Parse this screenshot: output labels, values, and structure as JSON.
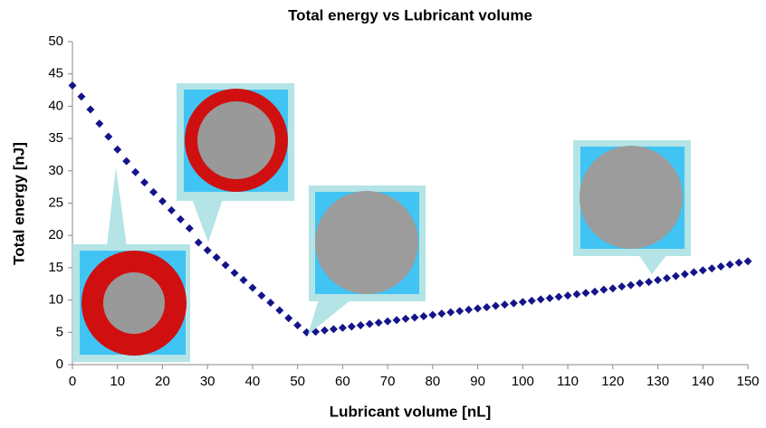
{
  "chart_data": {
    "type": "scatter",
    "title": "Total energy vs Lubricant volume",
    "x_label": "Lubricant volume [nL]",
    "y_label": "Total energy [nJ]",
    "xlim": [
      0,
      150
    ],
    "xticks": [
      0,
      10,
      20,
      30,
      40,
      50,
      60,
      70,
      80,
      90,
      100,
      110,
      120,
      130,
      140,
      150
    ],
    "ylim": [
      0,
      50
    ],
    "yticks": [
      0,
      5,
      10,
      15,
      20,
      25,
      30,
      35,
      40,
      45,
      50
    ],
    "grid": false,
    "series": [
      {
        "color": "#14148a",
        "x": [
          0,
          2,
          4,
          6,
          8,
          10,
          12,
          14,
          16,
          18,
          20,
          22,
          24,
          26,
          28,
          30,
          32,
          34,
          36,
          38,
          40,
          42,
          44,
          46,
          48,
          50,
          52,
          54,
          56,
          58,
          60,
          62,
          64,
          66,
          68,
          70,
          72,
          74,
          76,
          78,
          80,
          82,
          84,
          86,
          88,
          90,
          92,
          94,
          96,
          98,
          100,
          102,
          104,
          106,
          108,
          110,
          112,
          114,
          116,
          118,
          120,
          122,
          124,
          126,
          128,
          130,
          132,
          134,
          136,
          138,
          140,
          142,
          144,
          146,
          148,
          150
        ],
        "values": [
          43.2,
          41.5,
          39.5,
          37.3,
          35.3,
          33.3,
          31.5,
          29.8,
          28.2,
          26.7,
          25.3,
          23.9,
          22.5,
          21.1,
          18.9,
          17.7,
          16.6,
          15.4,
          14.2,
          13.1,
          11.9,
          10.7,
          9.6,
          8.4,
          7.2,
          6.1,
          5.0,
          5.1,
          5.3,
          5.5,
          5.7,
          5.9,
          6.1,
          6.3,
          6.5,
          6.7,
          6.9,
          7.1,
          7.3,
          7.5,
          7.7,
          7.9,
          8.1,
          8.3,
          8.5,
          8.7,
          8.9,
          9.1,
          9.3,
          9.5,
          9.7,
          9.9,
          10.1,
          10.3,
          10.5,
          10.7,
          10.9,
          11.1,
          11.3,
          11.6,
          11.8,
          12.1,
          12.3,
          12.6,
          12.8,
          13.1,
          13.4,
          13.7,
          14.0,
          14.3,
          14.6,
          14.9,
          15.2,
          15.5,
          15.8,
          16.0
        ]
      }
    ]
  }
}
